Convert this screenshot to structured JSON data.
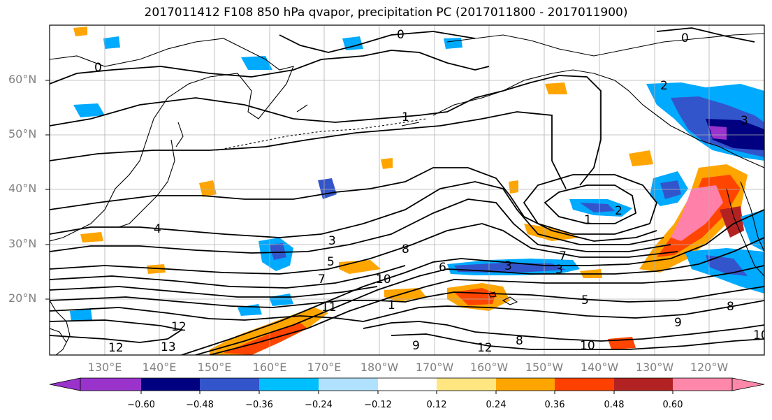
{
  "title": "2017011412 F108 850 hPa qvapor, precipitation PC (2017011800 - 2017011900)",
  "lat_labels": [
    "60°N",
    "50°N",
    "40°N",
    "30°N",
    "20°N"
  ],
  "lon_labels": [
    "130°E",
    "140°E",
    "150°E",
    "160°E",
    "170°E",
    "180°W",
    "170°W",
    "160°W",
    "150°W",
    "140°W",
    "130°W",
    "120°W"
  ],
  "contour_labels": [
    "0",
    "0",
    "0",
    "1",
    "1",
    "2",
    "3",
    "3",
    "4",
    "5",
    "6",
    "8",
    "8",
    "9",
    "9",
    "10",
    "10",
    "11",
    "12",
    "12",
    "13",
    "12",
    "3",
    "7",
    "1",
    "2",
    "3",
    "5",
    "7",
    "8",
    "10"
  ],
  "colorbar": {
    "ticks": [
      "−0.60",
      "−0.48",
      "−0.36",
      "−0.24",
      "−0.12",
      "0.12",
      "0.24",
      "0.36",
      "0.48",
      "0.60"
    ],
    "colors": [
      "#9933cc",
      "#000080",
      "#3355cc",
      "#00bfff",
      "#b0e2ff",
      "#ffffff",
      "#ffe680",
      "#ffa500",
      "#ff4000",
      "#b22222",
      "#ff88aa"
    ]
  },
  "map_colors": {
    "neg_strong": "#2b3fbf",
    "neg_mid": "#00aaff",
    "neg_light": "#9fd8ff",
    "pos_light": "#ffe070",
    "pos_mid": "#ffa500",
    "pos_strong": "#ff4500",
    "pos_max": "#ff80a8"
  }
}
